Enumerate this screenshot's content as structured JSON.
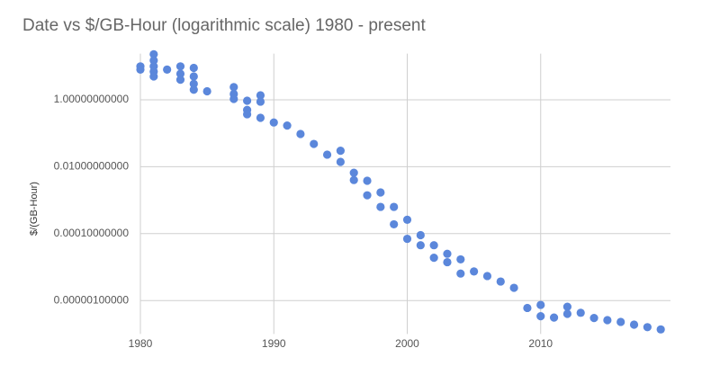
{
  "chart_data": {
    "type": "scatter",
    "title": "Date vs $/GB-Hour (logarithmic scale) 1980 - present",
    "y_label": "$/(GB-Hour)",
    "log_y": true,
    "grid": true,
    "color": "#5b87db",
    "xlim": [
      1980,
      2020
    ],
    "xticks": [
      1980,
      1990,
      2000,
      2010
    ],
    "ylim": [
      1e-07,
      20
    ],
    "yticks": [
      {
        "value": 1,
        "label": "1.00000000000"
      },
      {
        "value": 0.01,
        "label": "0.01000000000"
      },
      {
        "value": 0.0001,
        "label": "0.00010000000"
      },
      {
        "value": 1e-06,
        "label": "0.00000100000"
      }
    ],
    "x": [
      1980,
      1980,
      1981,
      1981,
      1981,
      1981,
      1981,
      1982,
      1983,
      1983,
      1983,
      1984,
      1984,
      1984,
      1984,
      1985,
      1987,
      1987,
      1987,
      1988,
      1988,
      1988,
      1989,
      1989,
      1989,
      1990,
      1991,
      1992,
      1993,
      1994,
      1995,
      1995,
      1996,
      1996,
      1997,
      1997,
      1998,
      1998,
      1999,
      1999,
      2000,
      2000,
      2001,
      2001,
      2002,
      2002,
      2003,
      2003,
      2004,
      2004,
      2005,
      2006,
      2007,
      2008,
      2009,
      2010,
      2010,
      2011,
      2012,
      2012,
      2013,
      2014,
      2015,
      2016,
      2017,
      2018,
      2019
    ],
    "values": [
      10,
      8,
      23,
      15,
      10,
      7,
      5,
      8,
      10,
      6,
      4,
      9,
      5,
      3,
      2,
      1.8,
      2.4,
      1.5,
      1.06,
      0.94,
      0.5,
      0.37,
      1.36,
      0.88,
      0.29,
      0.21,
      0.17,
      0.095,
      0.048,
      0.023,
      0.03,
      0.014,
      0.0066,
      0.004,
      0.0038,
      0.0014,
      0.0017,
      0.00063,
      0.00063,
      0.00019,
      0.00026,
      7e-05,
      9e-05,
      4.5e-05,
      4.5e-05,
      1.9e-05,
      2.5e-05,
      1.4e-05,
      1.7e-05,
      6.4e-06,
      7.4e-06,
      5.4e-06,
      3.7e-06,
      2.4e-06,
      6e-07,
      7.4e-07,
      3.4e-07,
      3.1e-07,
      6.5e-07,
      4e-07,
      4.3e-07,
      3e-07,
      2.6e-07,
      2.3e-07,
      1.9e-07,
      1.6e-07,
      1.37e-07
    ]
  }
}
